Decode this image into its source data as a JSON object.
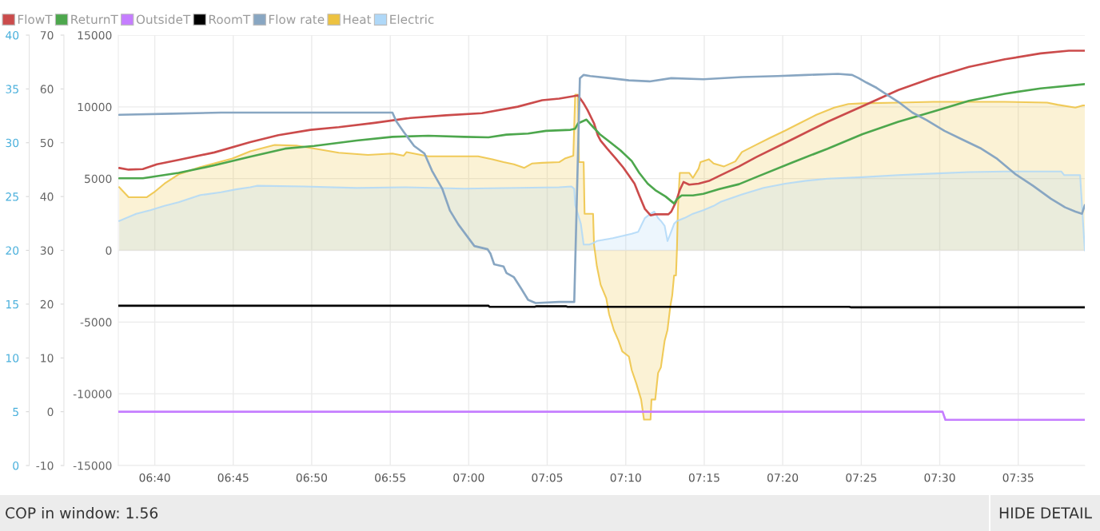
{
  "chart_data": {
    "type": "line",
    "xlim": [
      6.628,
      7.654
    ],
    "xticks": [
      {
        "value": 6.6667,
        "label": "06:40"
      },
      {
        "value": 6.75,
        "label": "06:45"
      },
      {
        "value": 6.8333,
        "label": "06:50"
      },
      {
        "value": 6.9167,
        "label": "06:55"
      },
      {
        "value": 7.0,
        "label": "07:00"
      },
      {
        "value": 7.0833,
        "label": "07:05"
      },
      {
        "value": 7.1667,
        "label": "07:10"
      },
      {
        "value": 7.25,
        "label": "07:15"
      },
      {
        "value": 7.3333,
        "label": "07:20"
      },
      {
        "value": 7.4167,
        "label": "07:25"
      },
      {
        "value": 7.5,
        "label": "07:30"
      },
      {
        "value": 7.5833,
        "label": "07:35"
      }
    ],
    "ylim": [
      -15000,
      15000
    ],
    "yticks": [
      -15000,
      -10000,
      -5000,
      0,
      5000,
      10000,
      15000
    ],
    "y2lim": [
      -10,
      70
    ],
    "y2ticks": [
      -10,
      0,
      10,
      20,
      30,
      40,
      50,
      60,
      70
    ],
    "y3lim": [
      0,
      40
    ],
    "y3ticks": [
      0,
      5,
      10,
      15,
      20,
      25,
      30,
      35,
      40
    ],
    "grid": true,
    "legend": "top left",
    "series": [
      {
        "name": "FlowT",
        "color": "#cb4b4b",
        "axis": "y2",
        "x": [
          6.629,
          6.639,
          6.654,
          6.669,
          6.692,
          6.73,
          6.768,
          6.798,
          6.832,
          6.862,
          6.9,
          6.938,
          6.976,
          7.014,
          7.052,
          7.078,
          7.096,
          7.116,
          7.122,
          7.126,
          7.133,
          7.137,
          7.14,
          7.147,
          7.156,
          7.164,
          7.17,
          7.176,
          7.181,
          7.187,
          7.193,
          7.198,
          7.212,
          7.215,
          7.22,
          7.224,
          7.228,
          7.234,
          7.244,
          7.255,
          7.268,
          7.287,
          7.305,
          7.343,
          7.381,
          7.418,
          7.456,
          7.493,
          7.531,
          7.569,
          7.607,
          7.637,
          7.654
        ],
        "values": [
          45.3,
          45.0,
          45.1,
          46.0,
          46.8,
          48.2,
          50.1,
          51.4,
          52.4,
          52.9,
          53.7,
          54.6,
          55.1,
          55.5,
          56.7,
          57.9,
          58.2,
          58.8,
          57.3,
          56.1,
          53.6,
          51.4,
          50.4,
          48.9,
          47.1,
          45.4,
          43.9,
          42.4,
          40.2,
          37.7,
          36.5,
          36.7,
          36.7,
          37.2,
          39.0,
          41.2,
          42.7,
          42.2,
          42.4,
          42.9,
          44.0,
          45.6,
          47.3,
          50.6,
          53.9,
          56.8,
          59.8,
          62.1,
          64.1,
          65.5,
          66.6,
          67.1,
          67.1
        ]
      },
      {
        "name": "ReturnT",
        "color": "#4da74d",
        "axis": "y2",
        "x": [
          6.629,
          6.654,
          6.692,
          6.73,
          6.768,
          6.805,
          6.836,
          6.881,
          6.919,
          6.957,
          6.995,
          7.021,
          7.04,
          7.063,
          7.082,
          7.108,
          7.113,
          7.116,
          7.125,
          7.13,
          7.139,
          7.15,
          7.161,
          7.173,
          7.181,
          7.19,
          7.198,
          7.209,
          7.218,
          7.221,
          7.226,
          7.238,
          7.249,
          7.266,
          7.287,
          7.305,
          7.343,
          7.381,
          7.418,
          7.456,
          7.493,
          7.531,
          7.569,
          7.607,
          7.654
        ],
        "values": [
          43.4,
          43.4,
          44.4,
          45.8,
          47.4,
          48.9,
          49.4,
          50.4,
          51.1,
          51.3,
          51.1,
          51.0,
          51.5,
          51.7,
          52.2,
          52.4,
          52.6,
          53.6,
          54.3,
          53.3,
          51.6,
          50.1,
          48.6,
          46.6,
          44.4,
          42.4,
          41.2,
          40.0,
          38.7,
          39.5,
          40.2,
          40.2,
          40.5,
          41.4,
          42.3,
          43.6,
          46.3,
          48.9,
          51.6,
          53.9,
          55.8,
          57.8,
          59.1,
          60.1,
          60.9
        ]
      },
      {
        "name": "OutsideT",
        "color": "#c57dff",
        "axis": "y2",
        "x": [
          6.628,
          7.503,
          7.506,
          7.654
        ],
        "values": [
          0,
          0,
          -1.5,
          -1.5
        ]
      },
      {
        "name": "RoomT",
        "color": "#000000",
        "axis": "y2",
        "x": [
          6.628,
          7.021,
          7.022,
          7.07,
          7.072,
          7.103,
          7.105,
          7.404,
          7.406,
          7.654
        ],
        "values": [
          19.7,
          19.7,
          19.5,
          19.5,
          19.6,
          19.6,
          19.5,
          19.5,
          19.4,
          19.4
        ]
      },
      {
        "name": "Flow rate",
        "color": "#88a6c2",
        "axis": "y3",
        "x": [
          6.629,
          6.685,
          6.737,
          6.805,
          6.866,
          6.919,
          6.923,
          6.931,
          6.942,
          6.953,
          6.961,
          6.972,
          6.98,
          6.989,
          7.006,
          7.02,
          7.023,
          7.027,
          7.037,
          7.04,
          7.048,
          7.056,
          7.063,
          7.071,
          7.096,
          7.112,
          7.118,
          7.122,
          7.129,
          7.15,
          7.17,
          7.192,
          7.215,
          7.249,
          7.29,
          7.328,
          7.358,
          7.392,
          7.407,
          7.414,
          7.422,
          7.433,
          7.445,
          7.456,
          7.471,
          7.486,
          7.505,
          7.524,
          7.543,
          7.561,
          7.58,
          7.599,
          7.618,
          7.633,
          7.644,
          7.651,
          7.654
        ],
        "values": [
          32.6,
          32.7,
          32.8,
          32.8,
          32.8,
          32.8,
          32.0,
          31.0,
          29.7,
          29.0,
          27.4,
          25.7,
          23.7,
          22.4,
          20.4,
          20.1,
          19.7,
          18.7,
          18.5,
          17.9,
          17.5,
          16.4,
          15.4,
          15.1,
          15.2,
          15.2,
          36.0,
          36.3,
          36.2,
          36.0,
          35.8,
          35.7,
          36.0,
          35.9,
          36.1,
          36.2,
          36.3,
          36.4,
          36.3,
          36.0,
          35.6,
          35.1,
          34.4,
          33.8,
          32.8,
          32.1,
          31.1,
          30.3,
          29.5,
          28.5,
          27.1,
          26.0,
          24.8,
          24.0,
          23.6,
          23.4,
          24.2
        ]
      },
      {
        "name": "Heat",
        "color": "#edc240",
        "type": "area",
        "x": [
          6.629,
          6.639,
          6.658,
          6.666,
          6.677,
          6.692,
          6.715,
          6.749,
          6.768,
          6.794,
          6.817,
          6.836,
          6.862,
          6.893,
          6.919,
          6.931,
          6.934,
          6.957,
          7.01,
          7.025,
          7.037,
          7.048,
          7.059,
          7.067,
          7.078,
          7.096,
          7.102,
          7.111,
          7.113,
          7.116,
          7.117,
          7.122,
          7.123,
          7.132,
          7.133,
          7.136,
          7.14,
          7.146,
          7.149,
          7.154,
          7.159,
          7.163,
          7.17,
          7.173,
          7.178,
          7.183,
          7.186,
          7.193,
          7.194,
          7.198,
          7.201,
          7.204,
          7.208,
          7.211,
          7.214,
          7.216,
          7.218,
          7.22,
          7.221,
          7.222,
          7.224,
          7.234,
          7.238,
          7.244,
          7.246,
          7.255,
          7.26,
          7.271,
          7.283,
          7.29,
          7.305,
          7.32,
          7.336,
          7.351,
          7.369,
          7.388,
          7.403,
          7.418,
          7.456,
          7.493,
          7.531,
          7.569,
          7.614,
          7.625,
          7.644,
          7.652,
          7.654
        ],
        "values": [
          4400,
          3700,
          3700,
          4050,
          4650,
          5300,
          5800,
          6400,
          6900,
          7350,
          7300,
          7100,
          6800,
          6650,
          6750,
          6600,
          6850,
          6550,
          6550,
          6350,
          6150,
          6000,
          5750,
          6050,
          6100,
          6150,
          6400,
          6600,
          10850,
          10850,
          6150,
          6150,
          2550,
          2550,
          400,
          -1100,
          -2400,
          -3350,
          -4450,
          -5550,
          -6300,
          -7050,
          -7400,
          -8350,
          -9300,
          -10400,
          -11800,
          -11800,
          -10400,
          -10400,
          -8550,
          -8150,
          -6300,
          -5550,
          -3900,
          -3150,
          -1750,
          -1750,
          0,
          2800,
          5400,
          5400,
          5050,
          5700,
          6150,
          6350,
          6050,
          5850,
          6200,
          6850,
          7350,
          7850,
          8350,
          8850,
          9450,
          9950,
          10200,
          10250,
          10300,
          10350,
          10350,
          10350,
          10300,
          10150,
          9950,
          10100,
          10100
        ]
      },
      {
        "name": "Electric",
        "color": "#afd8f8",
        "type": "area",
        "x": [
          6.629,
          6.647,
          6.662,
          6.677,
          6.692,
          6.715,
          6.737,
          6.753,
          6.768,
          6.775,
          6.825,
          6.881,
          6.931,
          6.995,
          7.096,
          7.109,
          7.112,
          7.113,
          7.119,
          7.122,
          7.128,
          7.132,
          7.136,
          7.153,
          7.173,
          7.18,
          7.184,
          7.187,
          7.193,
          7.197,
          7.201,
          7.204,
          7.208,
          7.211,
          7.214,
          7.218,
          7.221,
          7.229,
          7.238,
          7.249,
          7.26,
          7.268,
          7.29,
          7.313,
          7.336,
          7.358,
          7.381,
          7.418,
          7.456,
          7.493,
          7.531,
          7.569,
          7.629,
          7.632,
          7.649,
          7.654
        ],
        "values": [
          2050,
          2550,
          2800,
          3100,
          3350,
          3850,
          4050,
          4250,
          4400,
          4500,
          4450,
          4350,
          4400,
          4300,
          4400,
          4450,
          4300,
          3150,
          1850,
          400,
          400,
          500,
          650,
          850,
          1150,
          1300,
          1850,
          2250,
          2550,
          2700,
          2250,
          2050,
          1700,
          650,
          1150,
          1850,
          2050,
          2250,
          2550,
          2800,
          3100,
          3400,
          3900,
          4350,
          4650,
          4850,
          5000,
          5100,
          5250,
          5350,
          5450,
          5500,
          5500,
          5250,
          5250,
          0
        ]
      }
    ],
    "annotations": [
      "COP in window: 1.56",
      "HIDE DETAIL"
    ]
  }
}
